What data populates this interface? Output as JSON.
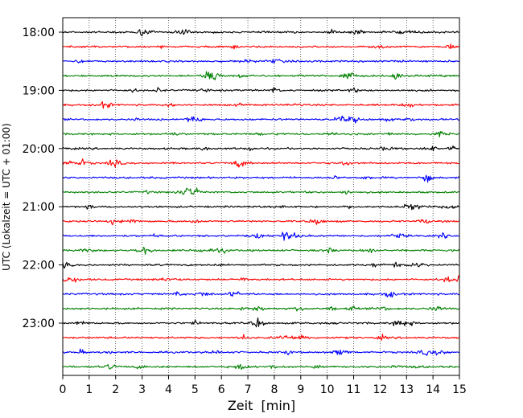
{
  "chart_data": {
    "type": "line",
    "subtype": "helicorder-seismogram",
    "title": "",
    "xlabel": "Zeit  [min]",
    "ylabel": "UTC (Lokalzeit = UTC + 01:00)",
    "xlim": [
      0,
      15
    ],
    "x_ticks": [
      "0",
      "1",
      "2",
      "3",
      "4",
      "5",
      "6",
      "7",
      "8",
      "9",
      "10",
      "11",
      "12",
      "13",
      "14",
      "15"
    ],
    "y_ticks": [
      "18:00",
      "19:00",
      "20:00",
      "21:00",
      "22:00",
      "23:00"
    ],
    "trace_start_times": [
      "18:00",
      "18:15",
      "18:30",
      "18:45",
      "19:00",
      "19:15",
      "19:30",
      "19:45",
      "20:00",
      "20:15",
      "20:30",
      "20:45",
      "21:00",
      "21:15",
      "21:30",
      "21:45",
      "22:00",
      "22:15",
      "22:30",
      "22:45",
      "23:00",
      "23:15",
      "23:30",
      "23:45"
    ],
    "trace_colors": [
      "#000000",
      "#ff0000",
      "#0000ff",
      "#008000"
    ],
    "grid": "vertical dotted lines at each minute",
    "legend": "none"
  }
}
